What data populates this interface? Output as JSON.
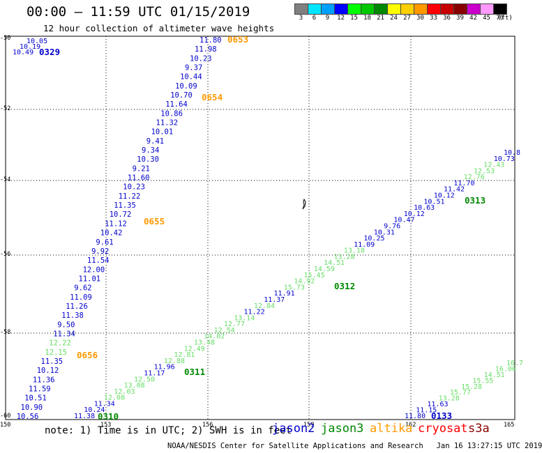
{
  "header": {
    "title": "00:00 – 11:59 UTC 01/15/2019",
    "subtitle": "12 hour collection of altimeter wave heights"
  },
  "colorbar": {
    "unit": "(ft)",
    "bins": [
      {
        "color": "#808080",
        "label": "3"
      },
      {
        "color": "#00e5ff",
        "label": "6"
      },
      {
        "color": "#00a0ff",
        "label": "9"
      },
      {
        "color": "#0000ff",
        "label": "12"
      },
      {
        "color": "#00ff00",
        "label": "15"
      },
      {
        "color": "#00c800",
        "label": "18"
      },
      {
        "color": "#008800",
        "label": "21"
      },
      {
        "color": "#ffff00",
        "label": "24"
      },
      {
        "color": "#ffd000",
        "label": "27"
      },
      {
        "color": "#ff9900",
        "label": "30"
      },
      {
        "color": "#ff0000",
        "label": "33"
      },
      {
        "color": "#c80000",
        "label": "36"
      },
      {
        "color": "#880000",
        "label": "39"
      },
      {
        "color": "#cc00cc",
        "label": "42"
      },
      {
        "color": "#ff99ff",
        "label": "45"
      },
      {
        "color": "#000000",
        "label": "70"
      }
    ]
  },
  "axes": {
    "lat_labels": [
      "-50",
      "-52",
      "-54",
      "-56",
      "-58",
      "-60"
    ],
    "lon_labels": [
      "150",
      "153",
      "156",
      "159",
      "162",
      "165"
    ]
  },
  "mission_colors": {
    "jason2": "#0000cc",
    "jason3": "#008800",
    "jason3_light": "#66dd66",
    "altika": "#ff9900",
    "cryosat": "#ff0000",
    "s3a": "#8b0000"
  },
  "tracks": {
    "track_a": {
      "times": [
        {
          "label": "0653",
          "color": "#ff9900"
        },
        {
          "label": "0654",
          "color": "#ff9900"
        },
        {
          "label": "0655",
          "color": "#ff9900"
        },
        {
          "label": "0656",
          "color": "#ff9900"
        }
      ],
      "values": [
        "11.80",
        "11.98",
        "10.23",
        "9.37",
        "10.44",
        "10.09",
        "10.70",
        "11.64",
        "10.86",
        "11.32",
        "10.01",
        "9.41",
        "9.34",
        "10.30",
        "9.21",
        "11.60",
        "10.23",
        "11.22",
        "11.35",
        "10.72",
        "11.12",
        "10.42",
        "9.61",
        "9.92",
        "11.54",
        "12.00",
        "11.01",
        "9.62",
        "11.09",
        "11.26",
        "11.38",
        "9.50",
        "11.34",
        "12.22",
        "12.15",
        "11.35",
        "10.12",
        "11.36",
        "11.59",
        "10.51",
        "10.90",
        "10.56"
      ]
    },
    "track_b": {
      "times": [
        {
          "label": "0329",
          "color": "#0000cc"
        }
      ],
      "values": [
        "10.05",
        "10.19",
        "10.49"
      ]
    },
    "track_c": {
      "times": [
        {
          "label": "0310",
          "color": "#008800"
        },
        {
          "label": "0311",
          "color": "#008800"
        },
        {
          "label": "0312",
          "color": "#008800"
        },
        {
          "label": "0313",
          "color": "#008800"
        }
      ],
      "values": [
        "11.38",
        "10.24",
        "11.34",
        "12.08",
        "12.03",
        "13.08",
        "12.50",
        "11.17",
        "11.96",
        "12.88",
        "12.81",
        "12.49",
        "13.48",
        "14.02",
        "12.54",
        "12.77",
        "13.14",
        "11.22",
        "12.84",
        "11.37",
        "11.91",
        "15.73",
        "14.92",
        "15.45",
        "14.59",
        "14.51",
        "13.28",
        "13.18",
        "11.09",
        "10.25",
        "10.31",
        "9.76",
        "10.47",
        "10.12",
        "10.63",
        "10.51",
        "10.12",
        "11.42",
        "11.70",
        "12.76",
        "12.53",
        "12.43",
        "10.73",
        "10.8"
      ]
    },
    "track_d": {
      "times": [
        {
          "label": "0133",
          "color": "#0000cc"
        }
      ],
      "values": [
        "11.80",
        "11.15",
        "11.63",
        "13.28",
        "15.77",
        "15.28",
        "15.55",
        "14.51",
        "16.06",
        "16.7"
      ]
    }
  },
  "notes": {
    "text": "note: 1) Time is in UTC; 2) SWH is in feet",
    "missions": [
      {
        "name": "jason2",
        "color": "#0000cc"
      },
      {
        "name": "jason3",
        "color": "#008800"
      },
      {
        "name": "altika",
        "color": "#ff9900"
      },
      {
        "name": "cryosat",
        "color": "#ff0000"
      },
      {
        "name": "s3a",
        "color": "#8b0000"
      }
    ],
    "credit": "NOAA/NESDIS Center for Satellite Applications and Research   Jan 16 13:27:15 UTC 2019"
  }
}
